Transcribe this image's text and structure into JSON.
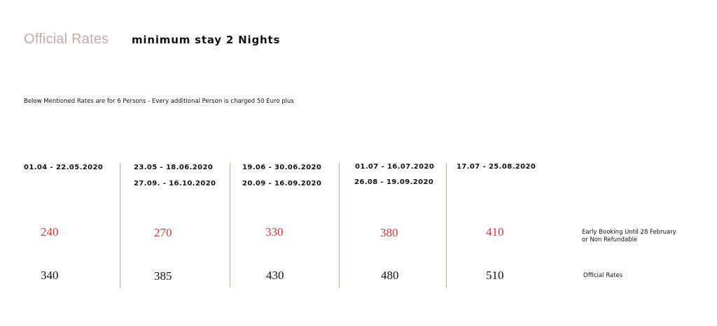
{
  "header": {
    "official_rates_title": "Official Rates",
    "minimum_stay": "minimum stay 2 Nights"
  },
  "note": "Below Mentioned Rates are for 6 Persons - Every additional Person is charged 50 Euro plus",
  "seasons": [
    {
      "periods": [
        "01.04 - 22.05.2020"
      ],
      "early_rate": "240",
      "official_rate": "340"
    },
    {
      "periods": [
        "23.05 - 18.06.2020",
        "27.09. - 16.10.2020"
      ],
      "early_rate": "270",
      "official_rate": "385"
    },
    {
      "periods": [
        "19.06 - 30.06.2020",
        "20.09 - 16.09.2020"
      ],
      "early_rate": "330",
      "official_rate": "430"
    },
    {
      "periods": [
        "01.07 - 16.07.2020",
        "26.08 - 19.09.2020"
      ],
      "early_rate": "380",
      "official_rate": "480"
    },
    {
      "periods": [
        "17.07 - 25.08.2020"
      ],
      "early_rate": "410",
      "official_rate": "510"
    }
  ],
  "row_labels": {
    "early_line1": "Early Booking Until 28 February",
    "early_line2": "or Non Refundable",
    "official": "Official Rates"
  },
  "colors": {
    "accent_beige": "#bfad9f",
    "early_red": "#c8373a",
    "divider": "#c7a793"
  }
}
